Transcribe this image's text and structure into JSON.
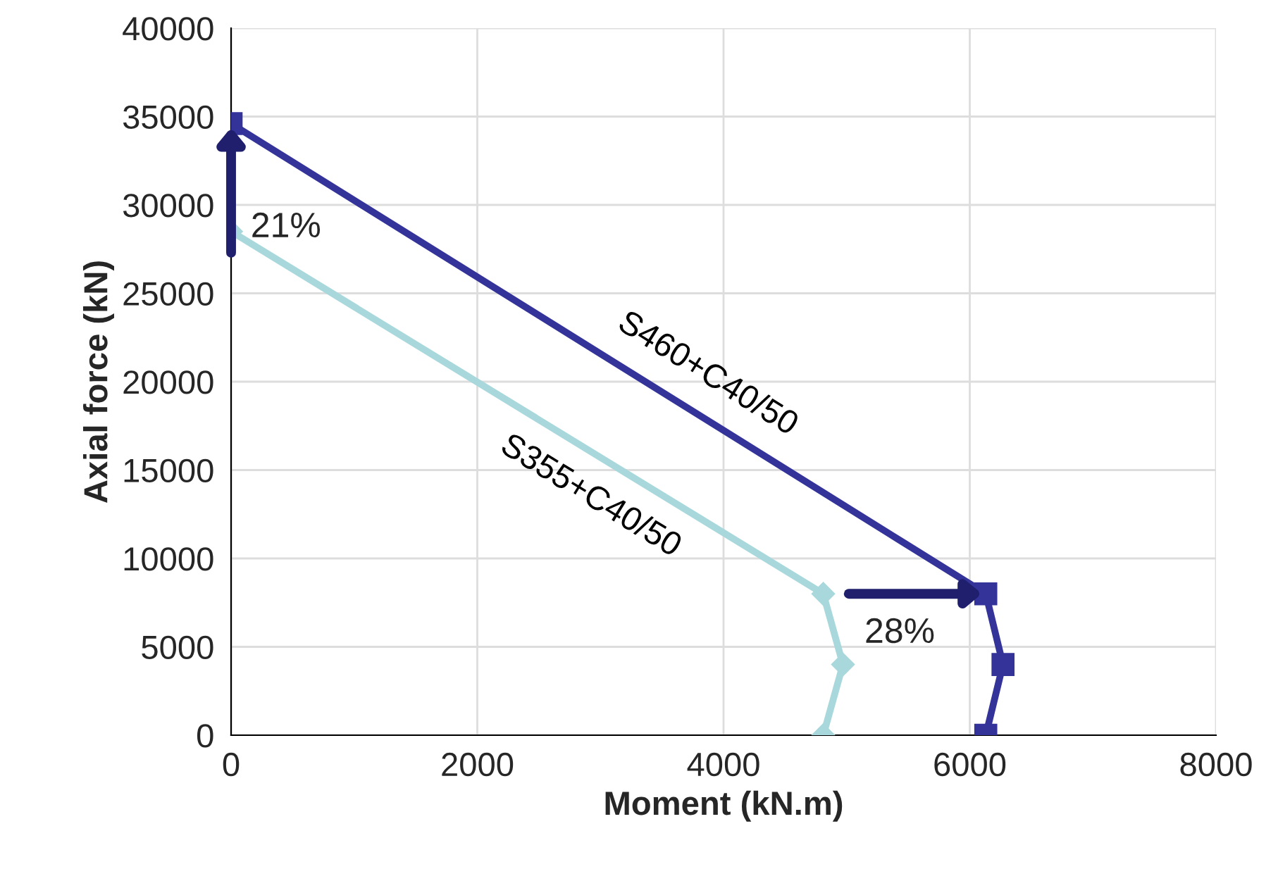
{
  "chart_data": {
    "type": "line",
    "xlabel": "Moment (kN.m)",
    "ylabel": "Axial force (kN)",
    "series": [
      {
        "name": "S460+C40/50",
        "color": "#33339a",
        "marker": "square",
        "x": [
          0,
          6130,
          6270,
          6130
        ],
        "values": [
          34600,
          8000,
          4000,
          0
        ]
      },
      {
        "name": "S355+C40/50",
        "color": "#a8d8dc",
        "marker": "diamond",
        "x": [
          0,
          4810,
          4970,
          4810
        ],
        "values": [
          28500,
          8000,
          4000,
          0
        ]
      }
    ],
    "xlim": [
      0,
      8000
    ],
    "xticks": [
      0,
      2000,
      4000,
      6000,
      8000
    ],
    "ylim": [
      0,
      40000
    ],
    "yticks": [
      0,
      5000,
      10000,
      15000,
      20000,
      25000,
      30000,
      35000,
      40000
    ],
    "grid": true,
    "legend": false,
    "line_style": "solid",
    "annotations": [
      {
        "text": "21%",
        "x": 0,
        "y": 34600
      },
      {
        "text": "28%",
        "x": 6130,
        "y": 8000
      }
    ]
  }
}
